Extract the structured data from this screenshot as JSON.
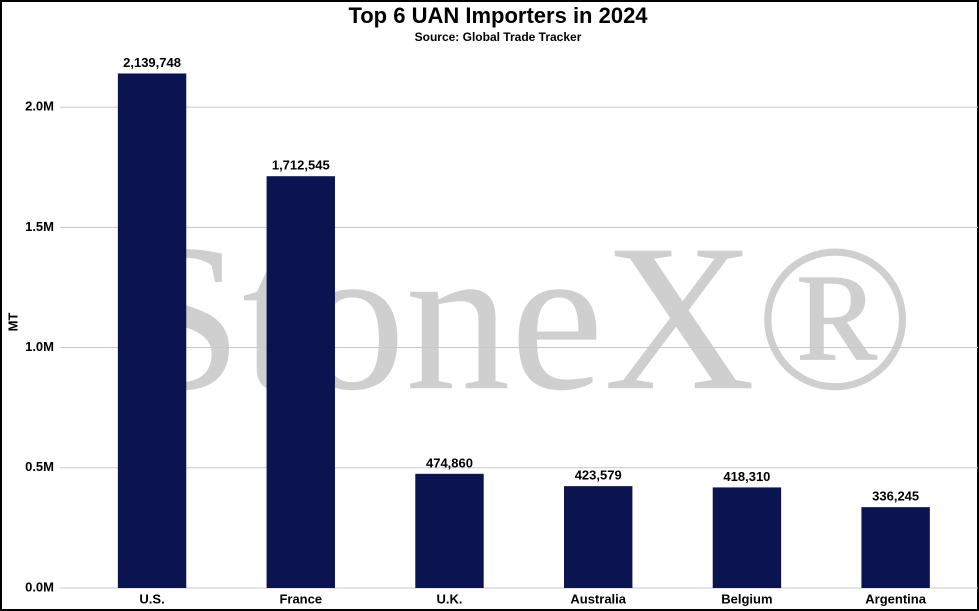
{
  "chart_data": {
    "type": "bar",
    "title": "Top 6 UAN Importers in 2024",
    "subtitle": "Source: Global Trade Tracker",
    "y_label": "MT",
    "watermark": "StoneX®",
    "categories": [
      "U.S.",
      "France",
      "U.K.",
      "Australia",
      "Belgium",
      "Argentina"
    ],
    "values": [
      2139748,
      1712545,
      474860,
      423579,
      418310,
      336245
    ],
    "value_labels": [
      "2,139,748",
      "1,712,545",
      "474,860",
      "423,579",
      "418,310",
      "336,245"
    ],
    "color": "#0b1450",
    "ylim": [
      0,
      2200000
    ],
    "yticks": [
      {
        "value": 0,
        "label": "0.0M"
      },
      {
        "value": 500000,
        "label": "0.5M"
      },
      {
        "value": 1000000,
        "label": "1.0M"
      },
      {
        "value": 1500000,
        "label": "1.5M"
      },
      {
        "value": 2000000,
        "label": "2.0M"
      }
    ],
    "grid": true
  }
}
